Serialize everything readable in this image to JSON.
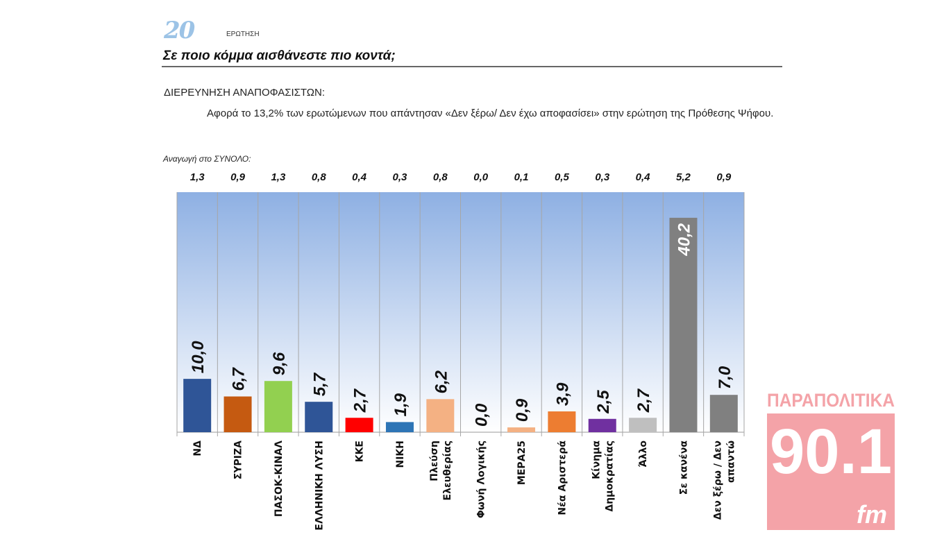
{
  "header": {
    "question_number": "20",
    "question_label": "ΕΡΩΤΗΣΗ",
    "title": "Σε ποιο κόμμα αισθάνεστε πιο κοντά;",
    "section": "ΔΙΕΡΕΥΝΗΣΗ ΑΝΑΠΟΦΑΣΙΣΤΩΝ:",
    "description": "Αφορά το 13,2% των ερωτώμενων που απάντησαν «Δεν ξέρω/ Δεν έχω αποφασίσει» στην ερώτηση της Πρόθεσης Ψήφου.",
    "reduction_label": "Αναγωγή στο ΣΥΝΟΛΟ:"
  },
  "logo": {
    "top": "ΠΑΡΑΠΟΛΙΤΙΚΑ",
    "number": "90.1",
    "suffix": "fm",
    "color": "#f4a3a8"
  },
  "chart_data": {
    "type": "bar",
    "title": "",
    "xlabel": "",
    "ylabel": "",
    "ylim": [
      0,
      45
    ],
    "grid": false,
    "categories": [
      [
        "ΝΔ"
      ],
      [
        "ΣΥΡΙΖΑ"
      ],
      [
        "ΠΑΣΟΚ-ΚΙΝΑΛ"
      ],
      [
        "ΕΛΛΗΝΙΚΗ ΛΥΣΗ"
      ],
      [
        "ΚΚΕ"
      ],
      [
        "ΝΙΚΗ"
      ],
      [
        "Πλεύση",
        "Ελευθερίας"
      ],
      [
        "Φωνή Λογικής"
      ],
      [
        "ΜΕΡΑ25"
      ],
      [
        "Νέα Αριστερά"
      ],
      [
        "Κίνημα",
        "Δημοκρατίας"
      ],
      [
        "Άλλο"
      ],
      [
        "Σε κανένα"
      ],
      [
        "Δεν ξέρω / Δεν",
        "απαντώ"
      ]
    ],
    "values": [
      10.0,
      6.7,
      9.6,
      5.7,
      2.7,
      1.9,
      6.2,
      0.0,
      0.9,
      3.9,
      2.5,
      2.7,
      40.2,
      7.0
    ],
    "value_labels": [
      "10,0",
      "6,7",
      "9,6",
      "5,7",
      "2,7",
      "1,9",
      "6,2",
      "0,0",
      "0,9",
      "3,9",
      "2,5",
      "2,7",
      "40,2",
      "7,0"
    ],
    "total_reduction": [
      "1,3",
      "0,9",
      "1,3",
      "0,8",
      "0,4",
      "0,3",
      "0,8",
      "0,0",
      "0,1",
      "0,5",
      "0,3",
      "0,4",
      "5,2",
      "0,9"
    ],
    "colors": [
      "#2f5597",
      "#c55a11",
      "#92d050",
      "#2f5597",
      "#ff0000",
      "#2e75b6",
      "#f4b183",
      "#f4b183",
      "#f4b183",
      "#ed7d31",
      "#7030a0",
      "#bfbfbf",
      "#808080",
      "#808080"
    ],
    "background_gradient": [
      "#8eb0e3",
      "#ffffff"
    ]
  }
}
